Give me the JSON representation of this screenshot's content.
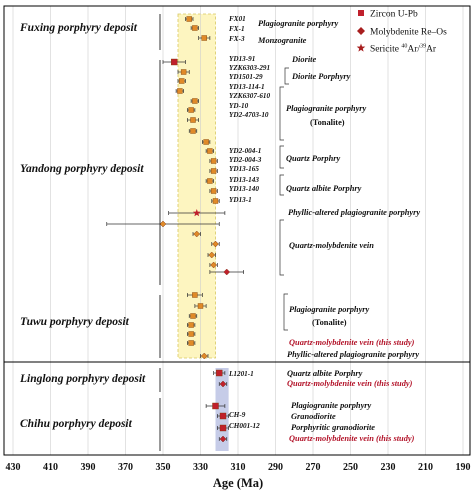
{
  "chart_data": {
    "type": "scatter",
    "xlabel": "Age (Ma)",
    "xlim": [
      430,
      190
    ],
    "x_ticks": [
      430,
      410,
      390,
      370,
      350,
      330,
      310,
      290,
      270,
      250,
      230,
      210,
      190
    ],
    "legend": {
      "placement": "top-right",
      "entries": [
        {
          "name": "Zircon U-Pb",
          "marker": "square",
          "color": "#c0202c"
        },
        {
          "name": "Molybdenite Re–Os",
          "marker": "diamond",
          "color": "#a81e1e"
        },
        {
          "name_prefix": "Sericite ",
          "sup1": "40",
          "mid": "Ar/",
          "sup2": "39",
          "suffix": "Ar",
          "marker": "star",
          "color": "#a81e1e"
        }
      ]
    },
    "deposits": [
      {
        "name": "Fuxing porphyry deposit",
        "samples": [
          "FX01",
          "FX-1",
          "FX-3"
        ],
        "rocks": [
          "Plagiogranite porphyry",
          "Monzogranite"
        ],
        "points": [
          {
            "y": 336,
            "err": 2,
            "marker": "square-orange"
          },
          {
            "y": 333,
            "err": 2,
            "marker": "square-orange"
          },
          {
            "y": 328,
            "err": 3,
            "marker": "square-orange"
          }
        ]
      },
      {
        "name": "Yandong porphyry deposit",
        "samples": [
          "YD13-91",
          "YZK6303-291",
          "YD1501-29",
          "YD13-114-1",
          "YZK6307-610",
          "YD-10",
          "YD2-4703-10",
          "YD2-004-1",
          "YD2-004-3",
          "YD13-165",
          "YD13-143",
          "YD13-140",
          "YD13-1"
        ],
        "rocks": [
          "Diorite",
          "Diorite Porphyry",
          "Plagiogranite porphyry",
          "(Tonalite)",
          "Quartz Porphry",
          "Quartz albite Porphry",
          "Phyllic-altered plagiogranite porphyry",
          "Quartz-molybdenite vein"
        ],
        "points": [
          {
            "y": 344,
            "err": 6,
            "marker": "square-red"
          },
          {
            "y": 339,
            "err": 3,
            "marker": "square-orange"
          },
          {
            "y": 340,
            "err": 2,
            "marker": "square-orange"
          },
          {
            "y": 341,
            "err": 2,
            "marker": "square-orange"
          },
          {
            "y": 333,
            "err": 2,
            "marker": "square-orange"
          },
          {
            "y": 335,
            "err": 2,
            "marker": "square-orange"
          },
          {
            "y": 334,
            "err": 3,
            "marker": "square-orange"
          },
          {
            "y": 334,
            "err": 2,
            "marker": "square-orange"
          },
          {
            "y": 327,
            "err": 2,
            "marker": "square-orange"
          },
          {
            "y": 325,
            "err": 2,
            "marker": "square-orange"
          },
          {
            "y": 323,
            "err": 2,
            "marker": "square-orange"
          },
          {
            "y": 323,
            "err": 2,
            "marker": "square-orange"
          },
          {
            "y": 325,
            "err": 2,
            "marker": "square-orange"
          },
          {
            "y": 323,
            "err": 2,
            "marker": "square-orange"
          },
          {
            "y": 322,
            "err": 2,
            "marker": "square-orange"
          },
          {
            "y": 332,
            "err": 15,
            "marker": "star"
          },
          {
            "y": 350,
            "err": 30,
            "marker": "diamond-orange"
          },
          {
            "y": 332,
            "err": 2,
            "marker": "diamond-orange"
          },
          {
            "y": 322,
            "err": 2,
            "marker": "diamond-orange"
          },
          {
            "y": 324,
            "err": 2,
            "marker": "diamond-orange"
          },
          {
            "y": 323,
            "err": 2,
            "marker": "diamond-orange"
          },
          {
            "y": 316,
            "err": 9,
            "marker": "diamond-red"
          }
        ]
      },
      {
        "name": "Tuwu porphyry deposit",
        "rocks": [
          "Plagiogranite porphyry",
          "(Tonalite)",
          "Quartz-molybdenite vein (this study)",
          "Phyllic-altered plagiogranite porphyry"
        ],
        "points": [
          {
            "y": 333,
            "err": 4,
            "marker": "square-orange"
          },
          {
            "y": 330,
            "err": 3,
            "marker": "square-orange"
          },
          {
            "y": 334,
            "err": 2,
            "marker": "square-orange"
          },
          {
            "y": 335,
            "err": 2,
            "marker": "square-orange"
          },
          {
            "y": 335,
            "err": 2,
            "marker": "square-orange"
          },
          {
            "y": 335,
            "err": 2,
            "marker": "square-orange"
          },
          {
            "y": 328,
            "err": 2,
            "marker": "diamond-orange"
          }
        ]
      },
      {
        "name": "Linglong porphyry deposit",
        "samples": [
          "L1201-1"
        ],
        "rocks": [
          "Quartz albite Porphry",
          "Quartz-molybdenite vein (this study)"
        ],
        "points": [
          {
            "y": 320,
            "err": 3,
            "marker": "square-red"
          },
          {
            "y": 318,
            "err": 2,
            "marker": "diamond-red"
          }
        ]
      },
      {
        "name": "Chihu porphyry deposit",
        "samples": [
          "CH-9",
          "CH001-12"
        ],
        "rocks": [
          "Plagiogranite porphyry",
          "Granodiorite",
          "Porphyritic granodiorite",
          "Quartz-molybdenite vein (this study)"
        ],
        "points": [
          {
            "y": 322,
            "err": 5,
            "marker": "square-red"
          },
          {
            "y": 318,
            "err": 3,
            "marker": "square-red"
          },
          {
            "y": 318,
            "err": 3,
            "marker": "square-red"
          },
          {
            "y": 318,
            "err": 2,
            "marker": "diamond-red"
          }
        ]
      }
    ],
    "highlight_bands": [
      {
        "from": 342,
        "to": 322,
        "color": "#fdf5c0"
      },
      {
        "from": 322,
        "to": 315,
        "color": "#c6cce8"
      }
    ],
    "colors": {
      "orange_marker": "#e08a28",
      "red_marker": "#c0202c",
      "this_study_text": "#b3142a",
      "grid": "#cfcfcf"
    }
  }
}
